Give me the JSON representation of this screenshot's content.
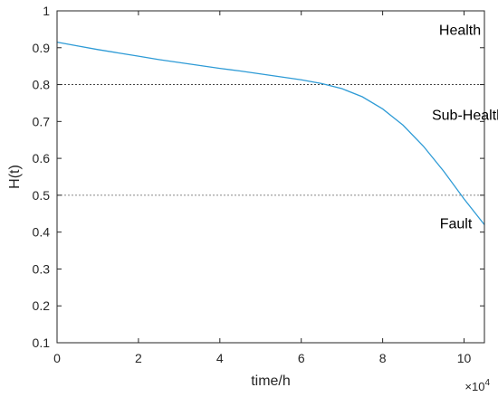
{
  "chart_data": {
    "type": "line",
    "xlabel": "time/h",
    "ylabel": "H(t)",
    "x_multiplier": "×10",
    "x_multiplier_exp": "4",
    "xlim": [
      0,
      10.5
    ],
    "ylim": [
      0.1,
      1
    ],
    "x_ticks": [
      "0",
      "2",
      "4",
      "6",
      "8",
      "10"
    ],
    "y_ticks": [
      "0.1",
      "0.2",
      "0.3",
      "0.4",
      "0.5",
      "0.6",
      "0.7",
      "0.8",
      "0.9",
      "1"
    ],
    "x_tick_values": [
      0,
      2,
      4,
      6,
      8,
      10
    ],
    "y_tick_values": [
      0.1,
      0.2,
      0.3,
      0.4,
      0.5,
      0.6,
      0.7,
      0.8,
      0.9,
      1.0
    ],
    "grid": false,
    "series": [
      {
        "color": "#2e9bd6",
        "x": [
          0,
          0.5,
          1,
          1.5,
          2,
          2.5,
          3,
          3.5,
          4,
          4.5,
          5,
          5.5,
          6,
          6.5,
          7,
          7.5,
          8,
          8.5,
          9,
          9.5,
          10,
          10.5
        ],
        "y": [
          0.915,
          0.905,
          0.895,
          0.886,
          0.877,
          0.868,
          0.86,
          0.852,
          0.844,
          0.837,
          0.829,
          0.821,
          0.813,
          0.803,
          0.789,
          0.767,
          0.734,
          0.69,
          0.633,
          0.565,
          0.49,
          0.42
        ]
      }
    ],
    "thresholds": [
      {
        "y": 0.8,
        "color": "#444444"
      },
      {
        "y": 0.5,
        "color": "#888888"
      }
    ],
    "annotations": [
      {
        "text": "Health",
        "x": 9.9,
        "y": 0.935
      },
      {
        "text": "Sub-Health",
        "x": 10.1,
        "y": 0.705
      },
      {
        "text": "Fault",
        "x": 9.8,
        "y": 0.41
      }
    ]
  }
}
